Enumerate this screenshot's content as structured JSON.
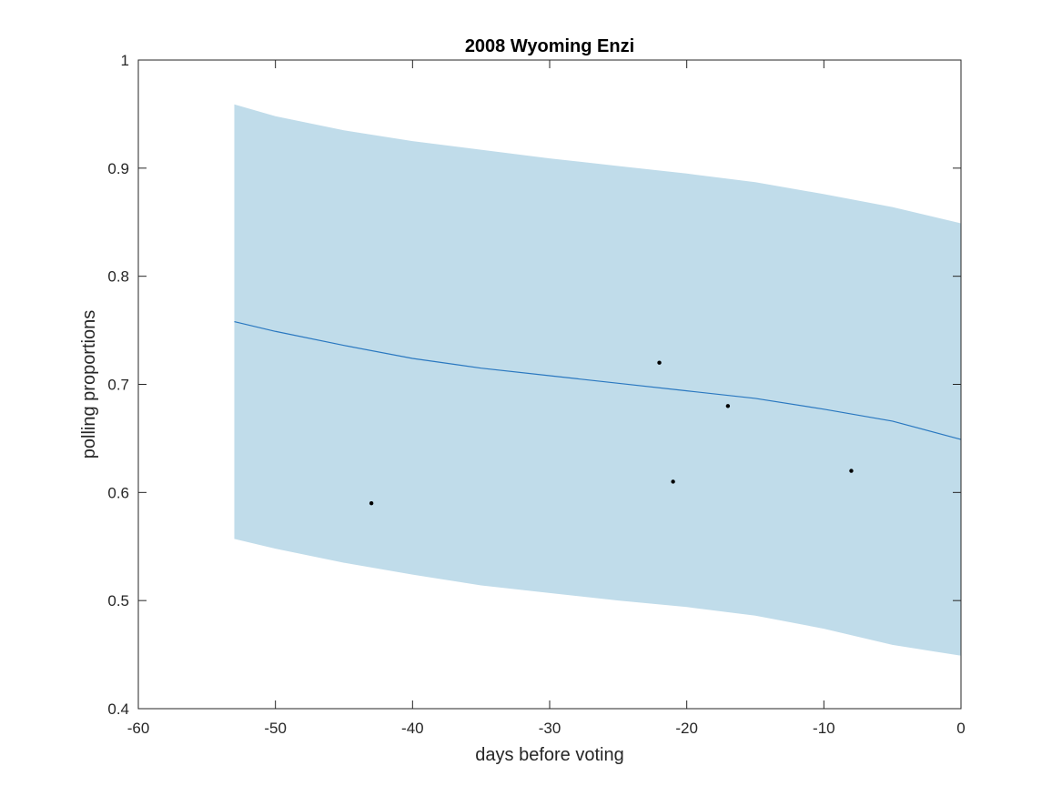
{
  "chart_data": {
    "type": "line",
    "title": "2008 Wyoming Enzi",
    "xlabel": "days before voting",
    "ylabel": "polling proportions",
    "xlim": [
      -60,
      0
    ],
    "ylim": [
      0.4,
      1
    ],
    "xticks": [
      -60,
      -50,
      -40,
      -30,
      -20,
      -10,
      0
    ],
    "xtick_labels": [
      "-60",
      "-50",
      "-40",
      "-30",
      "-20",
      "-10",
      "0"
    ],
    "yticks": [
      0.4,
      0.5,
      0.6,
      0.7,
      0.8,
      0.9,
      1
    ],
    "ytick_labels": [
      "0.4",
      "0.5",
      "0.6",
      "0.7",
      "0.8",
      "0.9",
      "1"
    ],
    "grid": false,
    "series": [
      {
        "kind": "band",
        "x": [
          -53,
          -50,
          -45,
          -40,
          -35,
          -30,
          -25,
          -20,
          -15,
          -10,
          -5,
          0
        ],
        "upper": [
          0.959,
          0.948,
          0.935,
          0.925,
          0.917,
          0.909,
          0.902,
          0.895,
          0.887,
          0.876,
          0.864,
          0.849
        ],
        "lower": [
          0.557,
          0.548,
          0.535,
          0.524,
          0.514,
          0.507,
          0.5,
          0.494,
          0.486,
          0.474,
          0.459,
          0.449
        ],
        "color": "#c0dcea"
      },
      {
        "kind": "line",
        "x": [
          -53,
          -50,
          -45,
          -40,
          -35,
          -30,
          -25,
          -20,
          -15,
          -10,
          -5,
          0
        ],
        "y": [
          0.758,
          0.749,
          0.736,
          0.724,
          0.715,
          0.708,
          0.701,
          0.694,
          0.687,
          0.677,
          0.666,
          0.649
        ],
        "color": "#2a78c0"
      },
      {
        "kind": "scatter",
        "x": [
          -43,
          -22,
          -21,
          -17,
          -8
        ],
        "y": [
          0.59,
          0.72,
          0.61,
          0.68,
          0.62
        ],
        "color": "#000000"
      }
    ]
  }
}
